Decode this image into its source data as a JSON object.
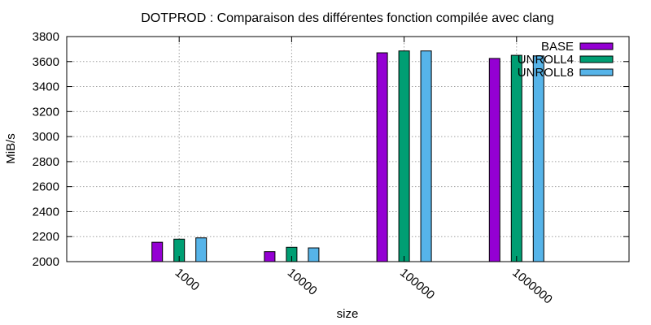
{
  "chart_data": {
    "type": "bar",
    "title": "DOTPROD : Comparaison des différentes fonction compilée avec clang",
    "xlabel": "size",
    "ylabel": "MiB/s",
    "categories": [
      "1000",
      "10000",
      "100000",
      "1000000"
    ],
    "ylim": [
      2000,
      3800
    ],
    "yticks": [
      2000,
      2200,
      2400,
      2600,
      2800,
      3000,
      3200,
      3400,
      3600,
      3800
    ],
    "grid": true,
    "legend_position": "top-right",
    "series": [
      {
        "name": "BASE",
        "color": "#9400d3",
        "values": [
          2155,
          2080,
          3670,
          3625
        ]
      },
      {
        "name": "UNROLL4",
        "color": "#009e73",
        "values": [
          2180,
          2115,
          3685,
          3650
        ]
      },
      {
        "name": "UNROLL8",
        "color": "#56b4e9",
        "values": [
          2190,
          2110,
          3685,
          3645
        ]
      }
    ]
  }
}
